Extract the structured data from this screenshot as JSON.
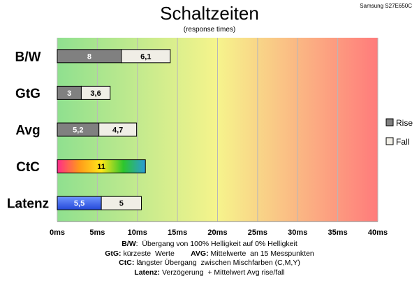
{
  "chart_data": {
    "type": "bar",
    "stacked": true,
    "orientation": "horizontal",
    "title": "Schaltzeiten",
    "subtitle": "(response times)",
    "model": "Samsung S27E650C",
    "categories": [
      "B/W",
      "GtG",
      "Avg",
      "CtC",
      "Latenz"
    ],
    "series": [
      {
        "name": "Rise",
        "values": [
          8,
          3,
          5.2,
          11,
          5.5
        ],
        "labels": [
          "8",
          "3",
          "5,2",
          "11",
          "5,5"
        ]
      },
      {
        "name": "Fall",
        "values": [
          6.1,
          3.6,
          4.7,
          null,
          5
        ],
        "labels": [
          "6,1",
          "3,6",
          "4,7",
          "",
          "5"
        ]
      }
    ],
    "xlim": [
      0,
      40
    ],
    "x_ticks": [
      0,
      5,
      10,
      15,
      20,
      25,
      30,
      35,
      40
    ],
    "x_tick_labels": [
      "0ms",
      "5ms",
      "10ms",
      "15ms",
      "20ms",
      "25ms",
      "30ms",
      "35ms",
      "40ms"
    ],
    "legend_position": "right",
    "grid": true,
    "background_gradient": [
      "#8fe08f",
      "#f6f48c",
      "#ff7b7b"
    ],
    "colors": {
      "rise": "#808080",
      "fall": "#f0eee6",
      "ctc_gradient": [
        "#ff2b8a",
        "#ff9a1a",
        "#ffe81a",
        "#2dc62d",
        "#2b9bd6"
      ],
      "latenz_rise": "#3366ee"
    }
  },
  "notes": [
    {
      "parts": [
        {
          "b": "B/W"
        },
        {
          "t": ":  Übergang von 100% Helligkeit auf 0% Helligkeit"
        }
      ]
    },
    {
      "parts": [
        {
          "b": "GtG:"
        },
        {
          "t": " kürzeste  Werte        "
        },
        {
          "b": "AVG:"
        },
        {
          "t": " Mittelwerte  an 15 Messpunkten"
        }
      ]
    },
    {
      "parts": [
        {
          "b": "CtC:"
        },
        {
          "t": " längster Übergang  zwischen Mischfarben (C,M,Y)"
        }
      ]
    },
    {
      "parts": [
        {
          "b": "Latenz:"
        },
        {
          "t": " Verzögerung  + Mittelwert Avg rise/fall"
        }
      ]
    }
  ]
}
